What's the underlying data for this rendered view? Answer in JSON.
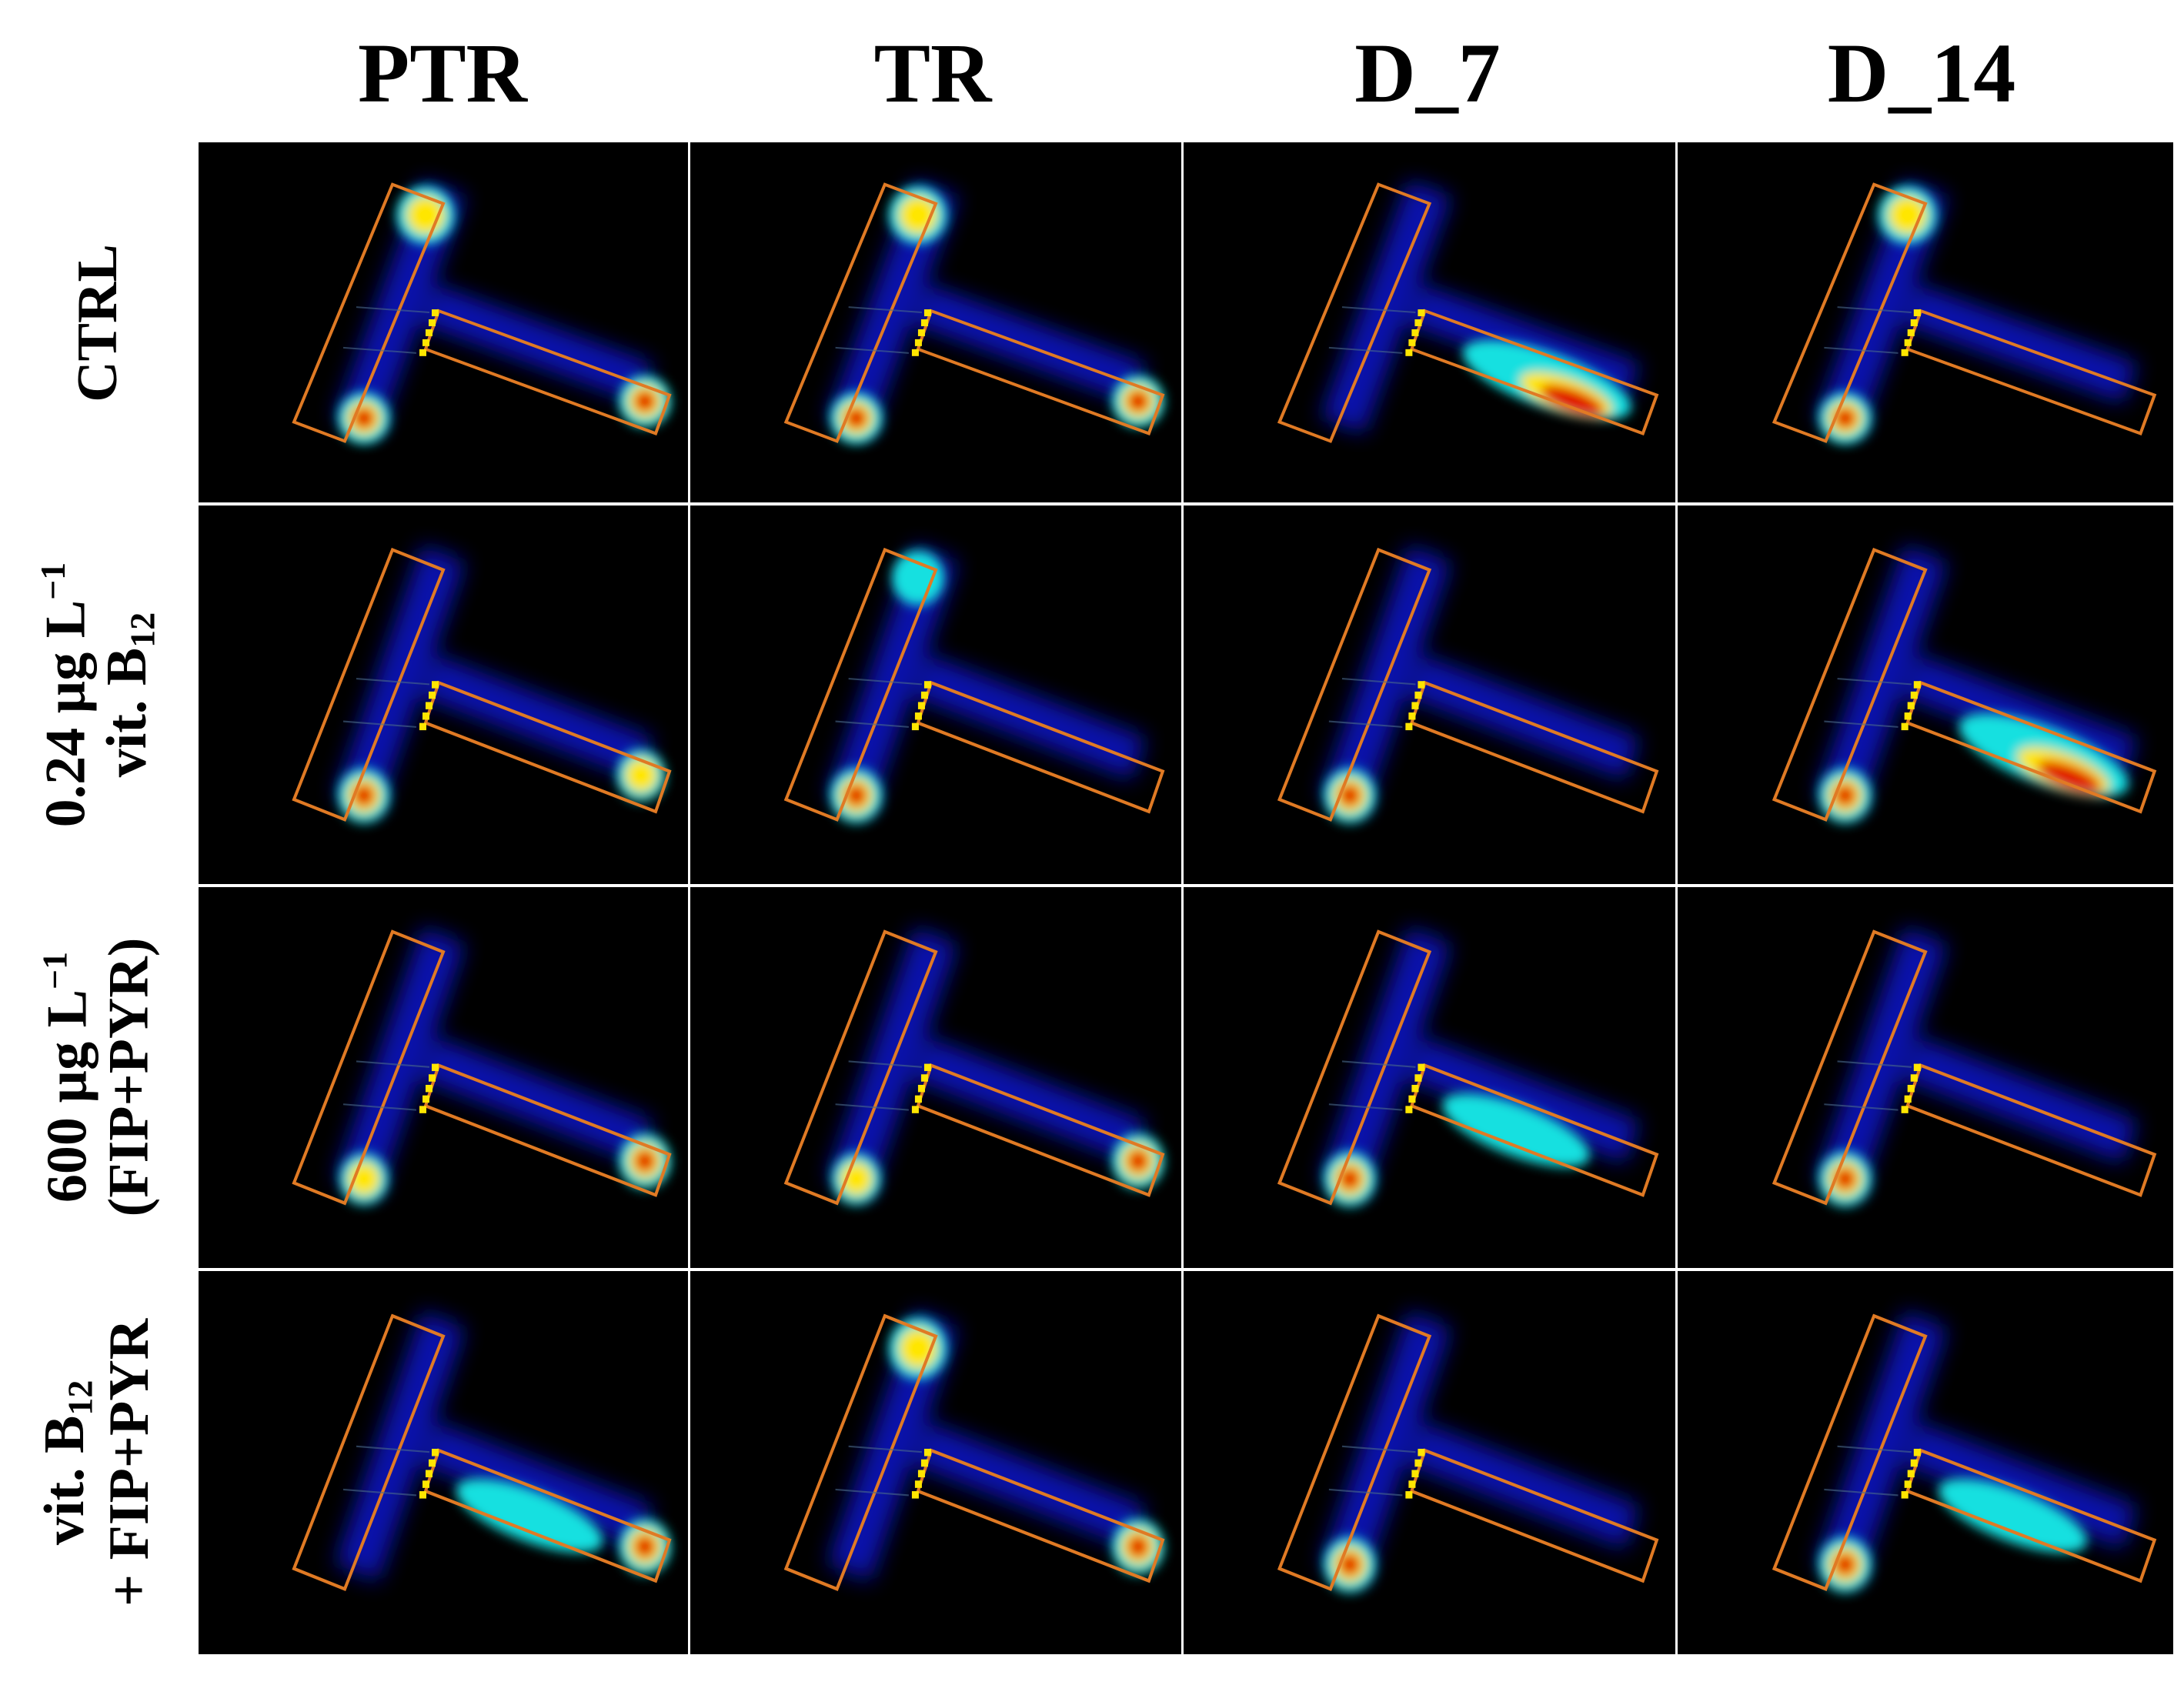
{
  "columns": [
    {
      "label": "PTR"
    },
    {
      "label": "TR"
    },
    {
      "label": "D_7"
    },
    {
      "label": "D_14"
    }
  ],
  "rows": [
    {
      "line1": "CTRL",
      "line2": ""
    },
    {
      "line1": "0.24 µg L",
      "line1_sup": "−1",
      "line2": "vit. B",
      "line2_sub": "12"
    },
    {
      "line1": "600 µg L",
      "line1_sup": "−1",
      "line2": "(FIP+PYR)"
    },
    {
      "line1": "vit. B",
      "line1_sub": "12",
      "line2": "+ FIP+PYR"
    }
  ],
  "colors": {
    "background": "#000000",
    "maze_outline": "#e07a24",
    "marker": "#ffe600",
    "heatmap_low": "#0a1aff",
    "heatmap_mid": "#18e0e0",
    "heatmap_high": "#e00000"
  },
  "heatmaps": [
    [
      {
        "hot": [
          "left-arm-top-mid",
          "left-arm-bottom-high",
          "right-arm-end-high"
        ]
      },
      {
        "hot": [
          "left-arm-top-mid",
          "left-arm-bottom-high",
          "right-arm-end-high"
        ]
      },
      {
        "hot": [
          "right-arm-center-high"
        ]
      },
      {
        "hot": [
          "left-arm-bottom-high",
          "left-arm-top-mid"
        ]
      }
    ],
    [
      {
        "hot": [
          "left-arm-bottom-high",
          "right-arm-end-mid"
        ]
      },
      {
        "hot": [
          "left-arm-bottom-high",
          "left-arm-top-low"
        ]
      },
      {
        "hot": [
          "left-arm-bottom-high"
        ]
      },
      {
        "hot": [
          "left-arm-bottom-high",
          "right-arm-center-high"
        ]
      }
    ],
    [
      {
        "hot": [
          "left-arm-bottom-mid",
          "right-arm-end-high"
        ]
      },
      {
        "hot": [
          "left-arm-bottom-mid",
          "right-arm-end-high"
        ]
      },
      {
        "hot": [
          "left-arm-bottom-high",
          "right-arm-center-mid"
        ]
      },
      {
        "hot": [
          "left-arm-bottom-high"
        ]
      }
    ],
    [
      {
        "hot": [
          "right-arm-end-high",
          "right-arm-center-mid"
        ]
      },
      {
        "hot": [
          "right-arm-end-high",
          "left-arm-top-mid"
        ]
      },
      {
        "hot": [
          "left-arm-bottom-high"
        ]
      },
      {
        "hot": [
          "left-arm-bottom-high",
          "right-arm-center-mid"
        ]
      }
    ]
  ]
}
